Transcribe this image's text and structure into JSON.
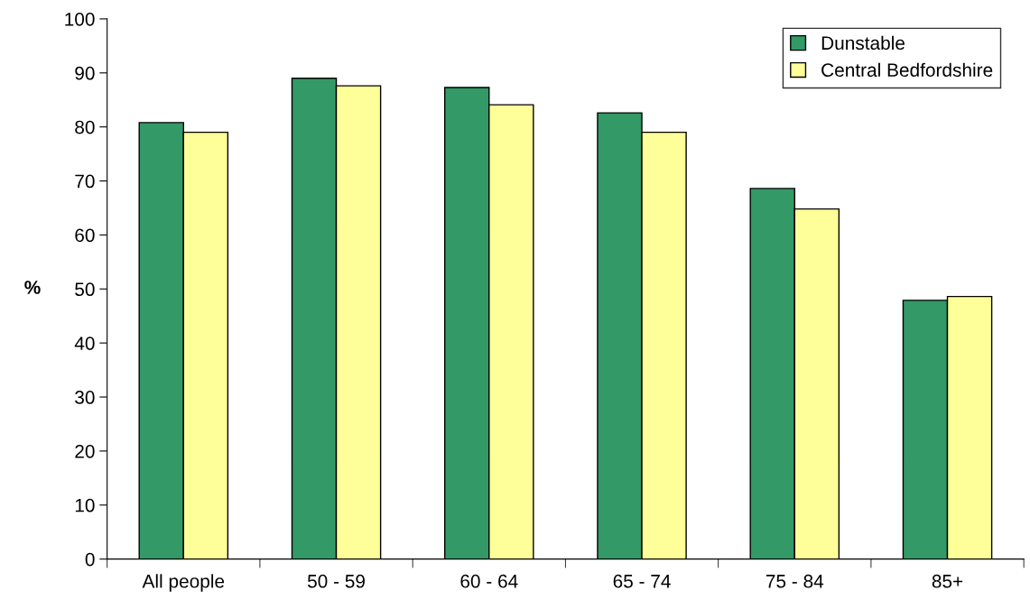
{
  "chart_data": {
    "type": "bar",
    "ylabel": "%",
    "categories": [
      "All people",
      "50 - 59",
      "60 - 64",
      "65 - 74",
      "75 - 84",
      "85+"
    ],
    "series": [
      {
        "name": "Dunstable",
        "color": "#339966",
        "values": [
          80.8,
          89.0,
          87.3,
          82.6,
          68.6,
          47.9
        ]
      },
      {
        "name": "Central Bedfordshire",
        "color": "#ffff99",
        "values": [
          79.0,
          87.6,
          84.1,
          79.0,
          64.8,
          48.6
        ]
      }
    ],
    "ylim": [
      0,
      100
    ],
    "yticks": [
      0,
      10,
      20,
      30,
      40,
      50,
      60,
      70,
      80,
      90,
      100
    ],
    "grid": false,
    "legend": "top right"
  }
}
